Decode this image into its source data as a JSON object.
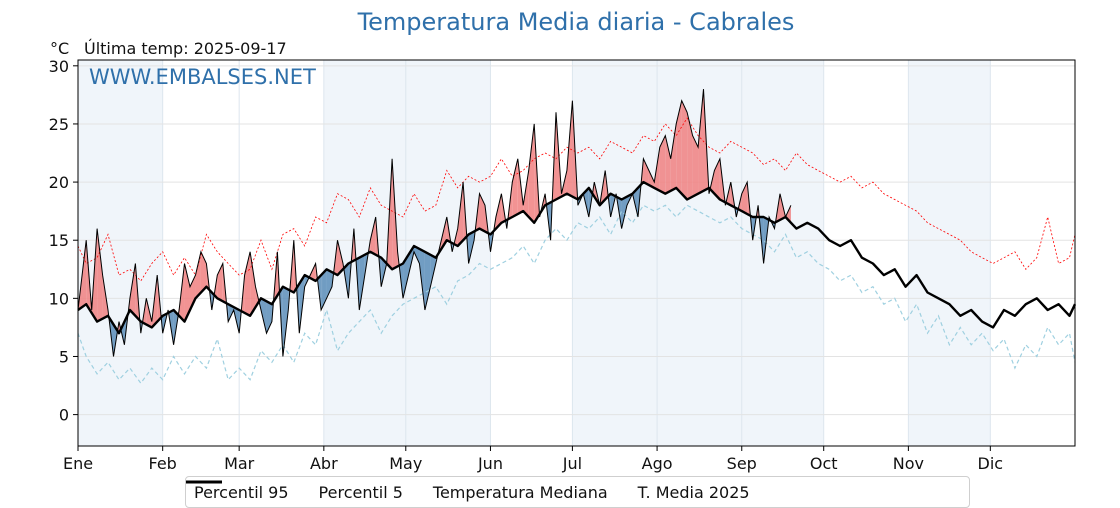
{
  "header": {
    "title": "Temperatura Media diaria - Cabrales",
    "unit": "°C",
    "last_temp": "Última temp: 2025-09-17",
    "watermark": "WWW.EMBALSES.NET"
  },
  "legend": {
    "p95": "Percentil 95",
    "p5": "Percentil 5",
    "median": "Temperatura Mediana",
    "mean2025": "T. Media 2025"
  },
  "colors": {
    "p95": "#ff0000",
    "p5": "#9fd0e0",
    "median": "#000000",
    "mean2025": "#000000",
    "above_fill": "#f08080",
    "below_fill": "#5b8db8",
    "band": "#e6eef7",
    "title": "#2f70aa"
  },
  "chart_data": {
    "type": "line",
    "title": "Temperatura Media diaria - Cabrales",
    "ylabel": "°C",
    "ylim": [
      -2.7,
      30.5
    ],
    "yticks": [
      0,
      5,
      10,
      15,
      20,
      25,
      30
    ],
    "xlim": [
      1,
      366
    ],
    "months": [
      "Ene",
      "Feb",
      "Mar",
      "Abr",
      "May",
      "Jun",
      "Jul",
      "Ago",
      "Sep",
      "Oct",
      "Nov",
      "Dic"
    ],
    "month_start_days": [
      1,
      32,
      60,
      91,
      121,
      152,
      182,
      213,
      244,
      274,
      305,
      335
    ],
    "shaded_months": [
      "Ene",
      "Abr",
      "May",
      "Jul",
      "Ago",
      "Sep",
      "Nov"
    ],
    "grid": true,
    "series": [
      {
        "name": "Percentil 95",
        "x": [
          1,
          4,
          8,
          12,
          16,
          20,
          24,
          28,
          32,
          36,
          40,
          44,
          48,
          52,
          56,
          60,
          64,
          68,
          72,
          76,
          80,
          84,
          88,
          92,
          96,
          100,
          104,
          108,
          112,
          116,
          120,
          124,
          128,
          132,
          136,
          140,
          144,
          148,
          152,
          156,
          160,
          164,
          168,
          172,
          176,
          180,
          184,
          188,
          192,
          196,
          200,
          204,
          208,
          212,
          216,
          220,
          224,
          228,
          232,
          236,
          240,
          244,
          248,
          252,
          256,
          260,
          264,
          268,
          272,
          276,
          280,
          284,
          288,
          292,
          296,
          300,
          304,
          308,
          312,
          316,
          320,
          324,
          328,
          332,
          336,
          340,
          344,
          348,
          352,
          356,
          360,
          364,
          366
        ],
        "values": [
          14.5,
          13,
          13.5,
          15.5,
          12,
          12.5,
          11.5,
          13,
          14,
          12,
          13.5,
          12,
          15.5,
          14,
          13,
          12,
          12.5,
          15,
          12.5,
          15.5,
          16,
          14.5,
          17,
          16.5,
          19,
          18.5,
          17,
          19.5,
          18,
          17.5,
          17,
          19,
          17.5,
          18,
          21,
          19.5,
          20.5,
          20,
          20.5,
          22,
          20.5,
          21,
          22,
          22.5,
          22,
          23,
          22.5,
          23,
          22,
          23.5,
          23,
          22.5,
          24,
          23.5,
          25,
          24,
          25.5,
          24,
          23,
          22.5,
          23.5,
          23,
          22.5,
          21.5,
          22,
          21,
          22.5,
          21.5,
          21,
          20.5,
          20,
          20.5,
          19.5,
          20,
          19,
          18.5,
          18,
          17.5,
          16.5,
          16,
          15.5,
          15,
          14,
          13.5,
          13,
          13.5,
          14,
          12.5,
          13.5,
          17,
          13,
          13.5,
          15.5
        ]
      },
      {
        "name": "Percentil 5",
        "x": [
          1,
          4,
          8,
          12,
          16,
          20,
          24,
          28,
          32,
          36,
          40,
          44,
          48,
          52,
          56,
          60,
          64,
          68,
          72,
          76,
          80,
          84,
          88,
          92,
          96,
          100,
          104,
          108,
          112,
          116,
          120,
          124,
          128,
          132,
          136,
          140,
          144,
          148,
          152,
          156,
          160,
          164,
          168,
          172,
          176,
          180,
          184,
          188,
          192,
          196,
          200,
          204,
          208,
          212,
          216,
          220,
          224,
          228,
          232,
          236,
          240,
          244,
          248,
          252,
          256,
          260,
          264,
          268,
          272,
          276,
          280,
          284,
          288,
          292,
          296,
          300,
          304,
          308,
          312,
          316,
          320,
          324,
          328,
          332,
          336,
          340,
          344,
          348,
          352,
          356,
          360,
          364,
          366
        ],
        "values": [
          7,
          5,
          3.5,
          4.5,
          3,
          4,
          2.7,
          4,
          3,
          5,
          3.5,
          5,
          4,
          6.5,
          3,
          4,
          3,
          5.5,
          4.5,
          6,
          4.5,
          7,
          6,
          9,
          5.5,
          7,
          8,
          9,
          7,
          8.5,
          9.5,
          10,
          10.5,
          11,
          9.5,
          11.5,
          12,
          13,
          12.5,
          13,
          13.5,
          14.5,
          13,
          15,
          16,
          15,
          16.5,
          16,
          17,
          15.5,
          17.5,
          16.5,
          18,
          17.5,
          18,
          17,
          18,
          17.5,
          17,
          16.5,
          17,
          16,
          15.5,
          15,
          14,
          15.5,
          13.5,
          14,
          13,
          12.5,
          11.5,
          12,
          10.5,
          11,
          9.5,
          10,
          8,
          9.5,
          7,
          8.5,
          6,
          7.5,
          6,
          7,
          5.5,
          6.5,
          4,
          6,
          5,
          7.5,
          6,
          7,
          4.5
        ]
      },
      {
        "name": "Temperatura Mediana",
        "x": [
          1,
          4,
          8,
          12,
          16,
          20,
          24,
          28,
          32,
          36,
          40,
          44,
          48,
          52,
          56,
          60,
          64,
          68,
          72,
          76,
          80,
          84,
          88,
          92,
          96,
          100,
          104,
          108,
          112,
          116,
          120,
          124,
          128,
          132,
          136,
          140,
          144,
          148,
          152,
          156,
          160,
          164,
          168,
          172,
          176,
          180,
          184,
          188,
          192,
          196,
          200,
          204,
          208,
          212,
          216,
          220,
          224,
          228,
          232,
          236,
          240,
          244,
          248,
          252,
          256,
          260,
          264,
          268,
          272,
          276,
          280,
          284,
          288,
          292,
          296,
          300,
          304,
          308,
          312,
          316,
          320,
          324,
          328,
          332,
          336,
          340,
          344,
          348,
          352,
          356,
          360,
          364,
          366
        ],
        "values": [
          9,
          9.5,
          8,
          8.5,
          7,
          9,
          8,
          7.5,
          8.5,
          9,
          8,
          10,
          11,
          10,
          9.5,
          9,
          8.5,
          10,
          9.5,
          11,
          10.5,
          12,
          11.5,
          12.5,
          12,
          13,
          13.5,
          14,
          13.5,
          12.5,
          13,
          14.5,
          14,
          13.5,
          15,
          14.5,
          15.5,
          16,
          15.5,
          16.5,
          17,
          17.5,
          16.5,
          18,
          18.5,
          19,
          18.5,
          19.5,
          18,
          19,
          18.5,
          19,
          20,
          19.5,
          19,
          19.5,
          18.5,
          19,
          19.5,
          18.5,
          18,
          17.5,
          17,
          17,
          16.5,
          17,
          16,
          16.5,
          16,
          15,
          14.5,
          15,
          13.5,
          13,
          12,
          12.5,
          11,
          12,
          10.5,
          10,
          9.5,
          8.5,
          9,
          8,
          7.5,
          9,
          8.5,
          9.5,
          10,
          9,
          9.5,
          8.5,
          9.5
        ]
      },
      {
        "name": "T. Media 2025",
        "x": [
          1,
          4,
          6,
          8,
          10,
          12,
          14,
          16,
          18,
          20,
          22,
          24,
          26,
          28,
          30,
          32,
          34,
          36,
          38,
          40,
          42,
          44,
          46,
          48,
          50,
          52,
          54,
          56,
          58,
          60,
          62,
          64,
          66,
          68,
          70,
          72,
          74,
          76,
          78,
          80,
          82,
          84,
          86,
          88,
          90,
          92,
          94,
          96,
          98,
          100,
          102,
          104,
          106,
          108,
          110,
          112,
          114,
          116,
          118,
          120,
          122,
          124,
          126,
          128,
          130,
          132,
          134,
          136,
          138,
          140,
          142,
          144,
          146,
          148,
          150,
          152,
          154,
          156,
          158,
          160,
          162,
          164,
          166,
          168,
          170,
          172,
          174,
          176,
          178,
          180,
          182,
          184,
          186,
          188,
          190,
          192,
          194,
          196,
          198,
          200,
          202,
          204,
          206,
          208,
          210,
          212,
          214,
          216,
          218,
          220,
          222,
          224,
          226,
          228,
          230,
          232,
          234,
          236,
          238,
          240,
          242,
          244,
          246,
          248,
          250,
          252,
          254,
          256,
          258,
          260,
          262
        ],
        "values": [
          9,
          15,
          9,
          16,
          12,
          9,
          5,
          8,
          6,
          10,
          13,
          7,
          10,
          8,
          12,
          7,
          9,
          6,
          9,
          13,
          11,
          12,
          14,
          13,
          9,
          12,
          13,
          8,
          9,
          7,
          12,
          14,
          11,
          9,
          7,
          8,
          14,
          5,
          9,
          15,
          7,
          11,
          12,
          13,
          9,
          10,
          11,
          15,
          13,
          10,
          16,
          9,
          12,
          15,
          17,
          11,
          13,
          22,
          14,
          10,
          12,
          14,
          13,
          9,
          11,
          13,
          15,
          17,
          14,
          16,
          20,
          13,
          15,
          19,
          18,
          14,
          17,
          19,
          16,
          20,
          22,
          18,
          21,
          25,
          17,
          19,
          15,
          26,
          19,
          21,
          27,
          18,
          19,
          17,
          20,
          18,
          21,
          17,
          19,
          16,
          18,
          19,
          17,
          22,
          21,
          20,
          23,
          24,
          22,
          25,
          27,
          26,
          24,
          23,
          28,
          19,
          21,
          22,
          18,
          20,
          17,
          19,
          20,
          15,
          18,
          13,
          17,
          16,
          19,
          17,
          18
        ]
      }
    ]
  }
}
